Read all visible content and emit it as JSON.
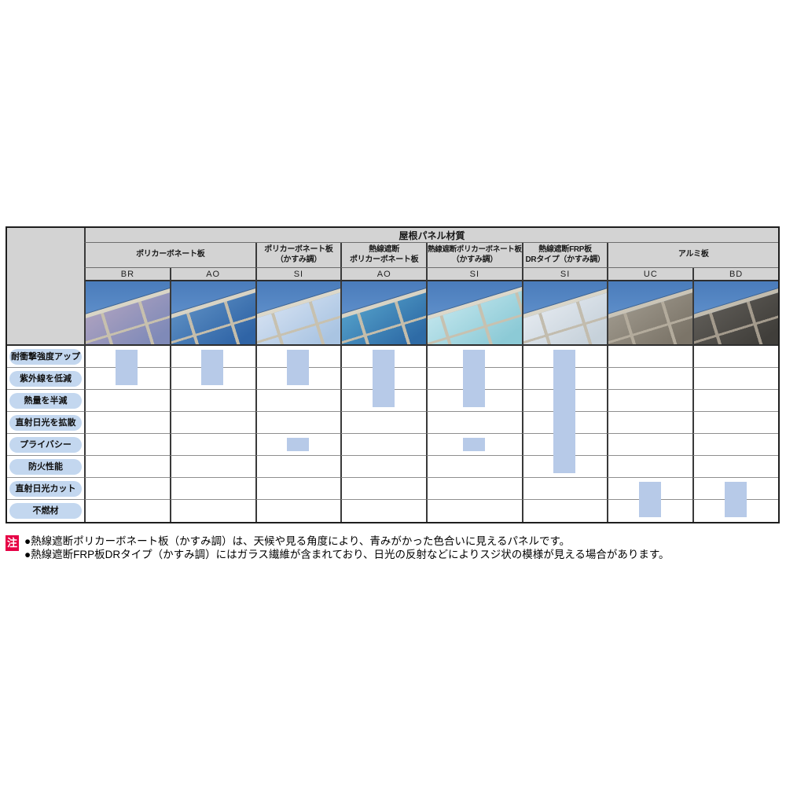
{
  "table": {
    "title": "屋根パネル材質",
    "header_bg": "#d3d3d3",
    "check_color": "#b7cae8",
    "pill_color": "#c3d7ef",
    "sky": {
      "top": "#4a7cbb",
      "bottom": "#6f9ed6"
    },
    "groups": [
      {
        "span": 2,
        "label_lines": [
          "ポリカーボネート板"
        ]
      },
      {
        "span": 1,
        "label_lines": [
          "ポリカーボネート板",
          "（かすみ調）"
        ]
      },
      {
        "span": 1,
        "label_lines": [
          "熱線遮断",
          "ポリカーボネート板"
        ]
      },
      {
        "span": 1,
        "label_lines": [
          "熱線遮断ポリカーボネート板",
          "（かすみ調）"
        ]
      },
      {
        "span": 1,
        "label_lines": [
          "熱線遮断FRP板",
          "DRタイプ（かすみ調）"
        ]
      },
      {
        "span": 2,
        "label_lines": [
          "アルミ板"
        ]
      }
    ],
    "rows": [
      "耐衝撃強度アップ",
      "紫外線を低減",
      "熱量を半減",
      "直射日光を拡散",
      "プライバシー",
      "防火性能",
      "直射日光カット",
      "不燃材"
    ],
    "columns": [
      {
        "code": "BR",
        "group": "ポリカーボネート板",
        "checks": [
          {
            "from": 0,
            "to": 1
          }
        ],
        "photo": {
          "panel": "#7f8ab8",
          "panel2": "#b0a3c0",
          "frame": "#c7c0ae",
          "fascia": "#dad5c6"
        }
      },
      {
        "code": "AO",
        "group": "ポリカーボネート板",
        "checks": [
          {
            "from": 0,
            "to": 1
          }
        ],
        "photo": {
          "panel": "#2f64a6",
          "panel2": "#5e90c4",
          "frame": "#c4bdab",
          "fascia": "#d8d3c4"
        }
      },
      {
        "code": "SI",
        "group": "ポリカーボネート板（かすみ調）",
        "checks": [
          {
            "from": 0,
            "to": 1
          },
          {
            "from": 4,
            "to": 4
          }
        ],
        "photo": {
          "panel": "#a9c4e2",
          "panel2": "#d6e2f2",
          "frame": "#c7c1b0",
          "fascia": "#dcd8ca"
        }
      },
      {
        "code": "AO",
        "group": "熱線遮断ポリカーボネート板",
        "checks": [
          {
            "from": 0,
            "to": 2
          }
        ],
        "photo": {
          "panel": "#2e6ba6",
          "panel2": "#55a2cb",
          "frame": "#c4bdab",
          "fascia": "#d8d3c4"
        }
      },
      {
        "code": "SI",
        "group": "熱線遮断ポリカーボネート板（かすみ調）",
        "checks": [
          {
            "from": 0,
            "to": 2
          },
          {
            "from": 4,
            "to": 4
          }
        ],
        "photo": {
          "panel": "#8ccad6",
          "panel2": "#c4e7ee",
          "frame": "#c7c1b0",
          "fascia": "#dcd8ca"
        }
      },
      {
        "code": "SI",
        "group": "熱線遮断FRP板DRタイプ（かすみ調）",
        "checks": [
          {
            "from": 0,
            "to": 5
          }
        ],
        "photo": {
          "panel": "#c6d1da",
          "panel2": "#e6ebf1",
          "frame": "#c2bcae",
          "fascia": "#d9d5c8"
        }
      },
      {
        "code": "UC",
        "group": "アルミ板",
        "checks": [
          {
            "from": 6,
            "to": 7
          }
        ],
        "photo": {
          "panel": "#7b7468",
          "panel2": "#a09a8e",
          "frame": "#b3ab9c",
          "fascia": "#cac4b6"
        }
      },
      {
        "code": "BD",
        "group": "アルミ板",
        "checks": [
          {
            "from": 6,
            "to": 7
          }
        ],
        "photo": {
          "panel": "#403e3a",
          "panel2": "#615e59",
          "frame": "#a39a8c",
          "fascia": "#c2bcae"
        }
      }
    ]
  },
  "notes": {
    "marker": "注",
    "marker_bg": "#e60045",
    "items": [
      "●熱線遮断ポリカーボネート板（かすみ調）は、天候や見る角度により、青みがかった色合いに見えるパネルです。",
      "●熱線遮断FRP板DRタイプ（かすみ調）にはガラス繊維が含まれており、日光の反射などによりスジ状の模様が見える場合があります。"
    ]
  }
}
